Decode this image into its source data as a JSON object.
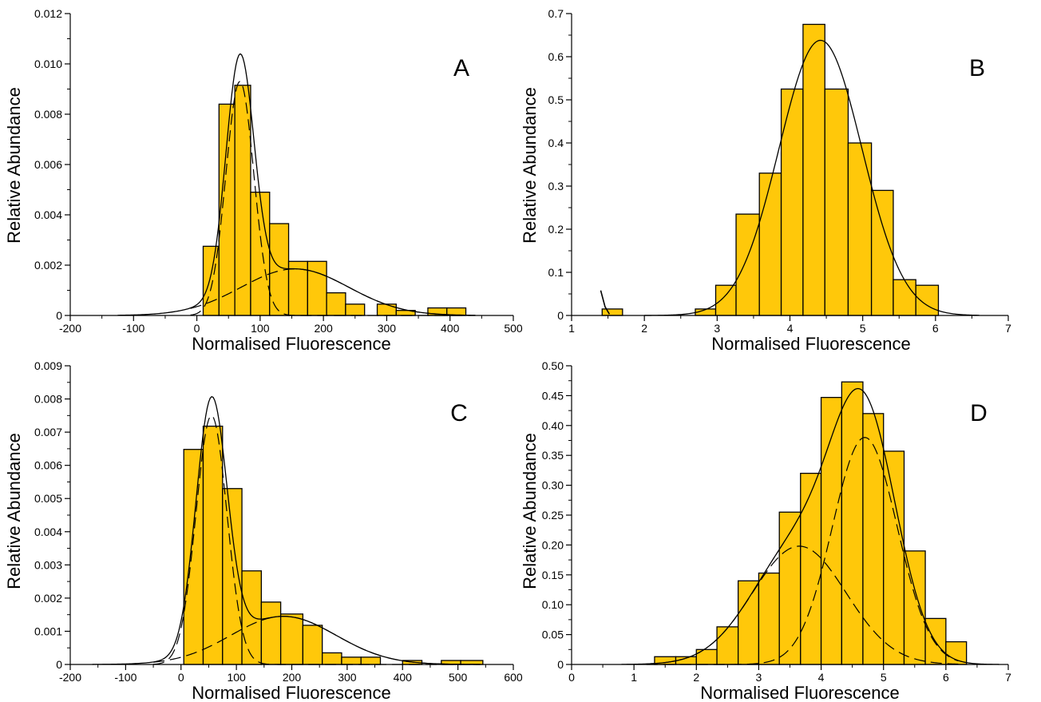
{
  "style": {
    "bar_fill": "#FFC80A",
    "bar_stroke": "#000000",
    "line_color": "#000000"
  },
  "chart_data": [
    {
      "panel": "A",
      "type": "bar",
      "xlabel": "Normalised Fluorescence",
      "ylabel": "Relative Abundance",
      "xlim": [
        -200,
        500
      ],
      "ylim": [
        0,
        0.012
      ],
      "xticks": [
        -200,
        -100,
        0,
        100,
        200,
        300,
        400,
        500
      ],
      "yticks": [
        0,
        0.002,
        0.004,
        0.006,
        0.008,
        0.01,
        0.012
      ],
      "yticklabels": [
        "0",
        "0.002",
        "0.004",
        "0.006",
        "0.008",
        "0.010",
        "0.012"
      ],
      "bins": [
        {
          "x0": 10,
          "x1": 35,
          "y": 0.00275
        },
        {
          "x0": 35,
          "x1": 60,
          "y": 0.0084
        },
        {
          "x0": 60,
          "x1": 85,
          "y": 0.00915
        },
        {
          "x0": 85,
          "x1": 115,
          "y": 0.0049
        },
        {
          "x0": 115,
          "x1": 145,
          "y": 0.00365
        },
        {
          "x0": 145,
          "x1": 175,
          "y": 0.00215
        },
        {
          "x0": 175,
          "x1": 205,
          "y": 0.00215
        },
        {
          "x0": 205,
          "x1": 235,
          "y": 0.0009
        },
        {
          "x0": 235,
          "x1": 265,
          "y": 0.00045
        },
        {
          "x0": 285,
          "x1": 315,
          "y": 0.00045
        },
        {
          "x0": 315,
          "x1": 345,
          "y": 0.0002
        },
        {
          "x0": 365,
          "x1": 395,
          "y": 0.0003
        },
        {
          "x0": 395,
          "x1": 425,
          "y": 0.0003
        }
      ],
      "components": [
        {
          "mu": 68,
          "sigma": 22,
          "amp": 0.0093
        },
        {
          "mu": 155,
          "sigma": 85,
          "amp": 0.00185
        }
      ],
      "curve_range": [
        -125,
        440
      ],
      "dashed_range": [
        -10,
        440
      ]
    },
    {
      "panel": "B",
      "type": "bar",
      "xlabel": "Normalised Fluorescence",
      "ylabel": "Relative Abundance",
      "xlim": [
        1,
        7
      ],
      "ylim": [
        0,
        0.7
      ],
      "xticks": [
        1,
        2,
        3,
        4,
        5,
        6,
        7
      ],
      "yticks": [
        0,
        0.1,
        0.2,
        0.3,
        0.4,
        0.5,
        0.6,
        0.7
      ],
      "yticklabels": [
        "0",
        "0.1",
        "0.2",
        "0.3",
        "0.4",
        "0.5",
        "0.6",
        "0.7"
      ],
      "bins": [
        {
          "x0": 1.42,
          "x1": 1.7,
          "y": 0.015
        },
        {
          "x0": 2.7,
          "x1": 2.98,
          "y": 0.015
        },
        {
          "x0": 2.98,
          "x1": 3.26,
          "y": 0.07
        },
        {
          "x0": 3.26,
          "x1": 3.58,
          "y": 0.235
        },
        {
          "x0": 3.58,
          "x1": 3.88,
          "y": 0.33
        },
        {
          "x0": 3.88,
          "x1": 4.18,
          "y": 0.525
        },
        {
          "x0": 4.18,
          "x1": 4.48,
          "y": 0.675
        },
        {
          "x0": 4.48,
          "x1": 4.8,
          "y": 0.525
        },
        {
          "x0": 4.8,
          "x1": 5.12,
          "y": 0.4
        },
        {
          "x0": 5.12,
          "x1": 5.42,
          "y": 0.29
        },
        {
          "x0": 5.42,
          "x1": 5.73,
          "y": 0.083
        },
        {
          "x0": 5.73,
          "x1": 6.04,
          "y": 0.07
        }
      ],
      "components": [
        {
          "mu": 4.42,
          "sigma": 0.57,
          "amp": 0.638
        }
      ],
      "curve_range": [
        2.0,
        6.6
      ],
      "spike": [
        [
          1.4,
          0.058
        ],
        [
          1.46,
          0.02
        ],
        [
          1.52,
          0.003
        ]
      ]
    },
    {
      "panel": "C",
      "type": "bar",
      "xlabel": "Normalised Fluorescence",
      "ylabel": "Relative Abundance",
      "xlim": [
        -200,
        600
      ],
      "ylim": [
        0,
        0.009
      ],
      "xticks": [
        -200,
        -100,
        0,
        100,
        200,
        300,
        400,
        500,
        600
      ],
      "yticks": [
        0,
        0.001,
        0.002,
        0.003,
        0.004,
        0.005,
        0.006,
        0.007,
        0.008,
        0.009
      ],
      "yticklabels": [
        "0",
        "0.001",
        "0.002",
        "0.003",
        "0.004",
        "0.005",
        "0.006",
        "0.007",
        "0.008",
        "0.009"
      ],
      "bins": [
        {
          "x0": 5,
          "x1": 40,
          "y": 0.00648
        },
        {
          "x0": 40,
          "x1": 75,
          "y": 0.00718
        },
        {
          "x0": 75,
          "x1": 110,
          "y": 0.0053
        },
        {
          "x0": 110,
          "x1": 145,
          "y": 0.00282
        },
        {
          "x0": 145,
          "x1": 180,
          "y": 0.00188
        },
        {
          "x0": 180,
          "x1": 220,
          "y": 0.00152
        },
        {
          "x0": 220,
          "x1": 255,
          "y": 0.00118
        },
        {
          "x0": 255,
          "x1": 290,
          "y": 0.00035
        },
        {
          "x0": 290,
          "x1": 325,
          "y": 0.00022
        },
        {
          "x0": 325,
          "x1": 360,
          "y": 0.00022
        },
        {
          "x0": 400,
          "x1": 435,
          "y": 0.00012
        },
        {
          "x0": 470,
          "x1": 505,
          "y": 0.00012
        },
        {
          "x0": 505,
          "x1": 545,
          "y": 0.00012
        }
      ],
      "components": [
        {
          "mu": 55,
          "sigma": 28,
          "amp": 0.0075
        },
        {
          "mu": 185,
          "sigma": 95,
          "amp": 0.00145
        }
      ],
      "curve_range": [
        -160,
        540
      ],
      "dashed_range": [
        -50,
        540
      ]
    },
    {
      "panel": "D",
      "type": "bar",
      "xlabel": "Normalised Fluorescence",
      "ylabel": "Relative Abundance",
      "xlim": [
        0,
        7
      ],
      "ylim": [
        0,
        0.5
      ],
      "xticks": [
        0,
        1,
        2,
        3,
        4,
        5,
        6,
        7
      ],
      "yticks": [
        0,
        0.05,
        0.1,
        0.15,
        0.2,
        0.25,
        0.3,
        0.35,
        0.4,
        0.45,
        0.5
      ],
      "yticklabels": [
        "0",
        "0.05",
        "0.10",
        "0.15",
        "0.20",
        "0.25",
        "0.30",
        "0.35",
        "0.40",
        "0.45",
        "0.50"
      ],
      "bins": [
        {
          "x0": 1.33,
          "x1": 1.67,
          "y": 0.013
        },
        {
          "x0": 1.67,
          "x1": 2.0,
          "y": 0.013
        },
        {
          "x0": 2.0,
          "x1": 2.33,
          "y": 0.025
        },
        {
          "x0": 2.33,
          "x1": 2.67,
          "y": 0.063
        },
        {
          "x0": 2.67,
          "x1": 3.0,
          "y": 0.14
        },
        {
          "x0": 3.0,
          "x1": 3.33,
          "y": 0.153
        },
        {
          "x0": 3.33,
          "x1": 3.67,
          "y": 0.255
        },
        {
          "x0": 3.67,
          "x1": 4.0,
          "y": 0.32
        },
        {
          "x0": 4.0,
          "x1": 4.33,
          "y": 0.447
        },
        {
          "x0": 4.33,
          "x1": 4.67,
          "y": 0.473
        },
        {
          "x0": 4.67,
          "x1": 5.0,
          "y": 0.42
        },
        {
          "x0": 5.0,
          "x1": 5.33,
          "y": 0.357
        },
        {
          "x0": 5.33,
          "x1": 5.67,
          "y": 0.19
        },
        {
          "x0": 5.67,
          "x1": 6.0,
          "y": 0.077
        },
        {
          "x0": 6.0,
          "x1": 6.33,
          "y": 0.038
        }
      ],
      "components": [
        {
          "mu": 3.65,
          "sigma": 0.75,
          "amp": 0.198
        },
        {
          "mu": 4.7,
          "sigma": 0.52,
          "amp": 0.38
        }
      ],
      "curve_range": [
        0.8,
        6.85
      ],
      "dashed_range": [
        1.2,
        6.2
      ]
    }
  ]
}
